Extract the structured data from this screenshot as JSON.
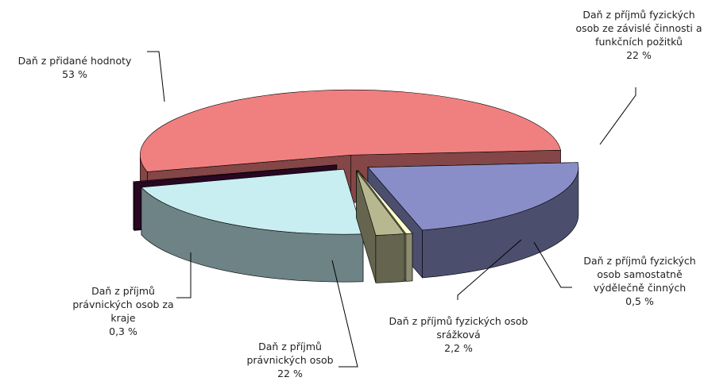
{
  "chart_data": {
    "type": "pie3d",
    "categories": [
      "Daň z přidané hodnoty",
      "Daň z příjmů fyzických osob ze závislé činnosti a funkčních požitků",
      "Daň z příjmů fyzických osob samostatně výdělečně činných",
      "Daň z příjmů fyzických osob srážková",
      "Daň z příjmů právnických osob",
      "Daň z příjmů právnických osob za kraje"
    ],
    "values": [
      53,
      22,
      0.5,
      2.2,
      22,
      0.3
    ],
    "value_labels": [
      "53 %",
      "22 %",
      "0,5 %",
      "2,2 %",
      "22 %",
      "0,3 %"
    ],
    "colors": [
      "#f08080",
      "#8a8ec8",
      "#ffffcc",
      "#b8b890",
      "#c8eef2",
      "#4a0d3e"
    ]
  }
}
